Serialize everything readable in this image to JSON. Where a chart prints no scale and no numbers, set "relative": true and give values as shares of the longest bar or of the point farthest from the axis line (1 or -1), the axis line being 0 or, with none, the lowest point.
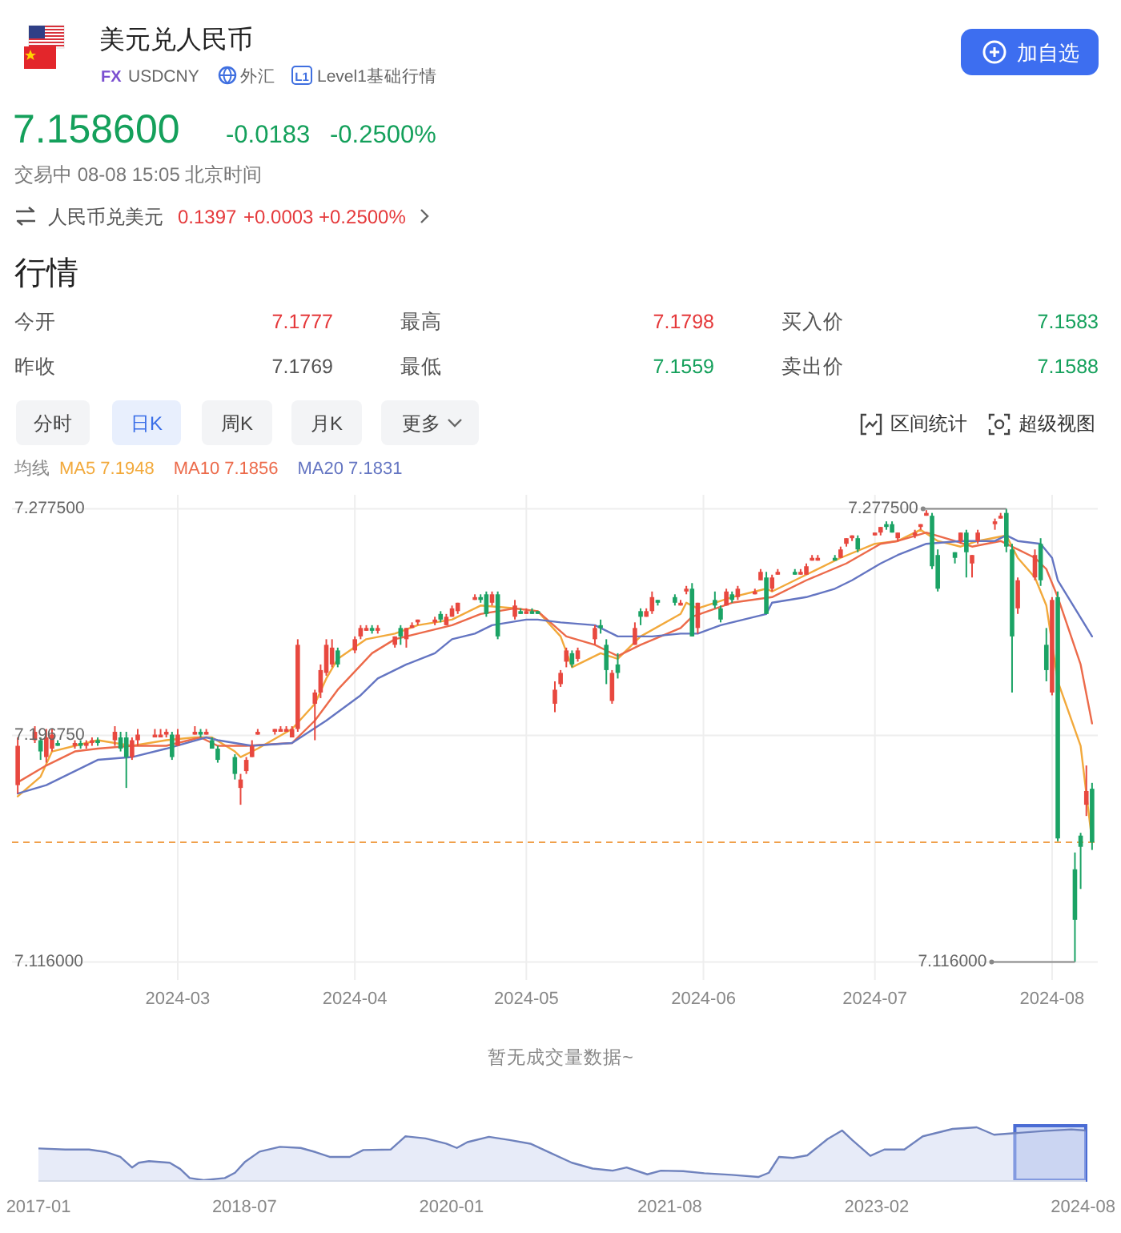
{
  "chart_data": [
    {
      "type": "other",
      "title": "美元兑人民币",
      "annotations": [
        "FX",
        "USDCNY",
        "外汇",
        "L1",
        "Level1基础行情",
        "加自选",
        "7.158600",
        "-0.0183",
        "-0.2500%",
        "交易中 08-08 15:05 北京时间",
        "人民币兑美元",
        "0.1397",
        "+0.0003",
        "+0.2500%",
        "行情",
        "今开",
        "7.1777",
        "最高",
        "7.1798",
        "买入价",
        "7.1583",
        "昨收",
        "7.1769",
        "最低",
        "7.1559",
        "卖出价",
        "7.1588",
        "分时",
        "日K",
        "周K",
        "月K",
        "更多",
        "区间统计",
        "超级视图"
      ]
    },
    {
      "type": "candlestick",
      "x": [
        "2024-02-02",
        "2024-02-05",
        "2024-02-06",
        "2024-02-07",
        "2024-02-08",
        "2024-02-09",
        "2024-02-12",
        "2024-02-13",
        "2024-02-14",
        "2024-02-15",
        "2024-02-16",
        "2024-02-19",
        "2024-02-20",
        "2024-02-21",
        "2024-02-22",
        "2024-02-23",
        "2024-02-26",
        "2024-02-27",
        "2024-02-28",
        "2024-02-29",
        "2024-03-01",
        "2024-03-04",
        "2024-03-05",
        "2024-03-06",
        "2024-03-07",
        "2024-03-08",
        "2024-03-11",
        "2024-03-12",
        "2024-03-13",
        "2024-03-14",
        "2024-03-15",
        "2024-03-18",
        "2024-03-19",
        "2024-03-20",
        "2024-03-21",
        "2024-03-22",
        "2024-03-25",
        "2024-03-26",
        "2024-03-27",
        "2024-03-28",
        "2024-03-29",
        "2024-04-01",
        "2024-04-02",
        "2024-04-03",
        "2024-04-04",
        "2024-04-05",
        "2024-04-08",
        "2024-04-09",
        "2024-04-10",
        "2024-04-11",
        "2024-04-12",
        "2024-04-15",
        "2024-04-16",
        "2024-04-17",
        "2024-04-18",
        "2024-04-19",
        "2024-04-22",
        "2024-04-23",
        "2024-04-24",
        "2024-04-25",
        "2024-04-26",
        "2024-04-29",
        "2024-04-30",
        "2024-05-01",
        "2024-05-02",
        "2024-05-03",
        "2024-05-06",
        "2024-05-07",
        "2024-05-08",
        "2024-05-09",
        "2024-05-10",
        "2024-05-13",
        "2024-05-14",
        "2024-05-15",
        "2024-05-16",
        "2024-05-17",
        "2024-05-20",
        "2024-05-21",
        "2024-05-22",
        "2024-05-23",
        "2024-05-24",
        "2024-05-27",
        "2024-05-28",
        "2024-05-29",
        "2024-05-30",
        "2024-05-31",
        "2024-06-03",
        "2024-06-04",
        "2024-06-05",
        "2024-06-06",
        "2024-06-07",
        "2024-06-10",
        "2024-06-11",
        "2024-06-12",
        "2024-06-13",
        "2024-06-14",
        "2024-06-17",
        "2024-06-18",
        "2024-06-19",
        "2024-06-20",
        "2024-06-21",
        "2024-06-24",
        "2024-06-25",
        "2024-06-26",
        "2024-06-27",
        "2024-06-28",
        "2024-07-01",
        "2024-07-02",
        "2024-07-03",
        "2024-07-04",
        "2024-07-05",
        "2024-07-08",
        "2024-07-09",
        "2024-07-10",
        "2024-07-11",
        "2024-07-12",
        "2024-07-15",
        "2024-07-16",
        "2024-07-17",
        "2024-07-18",
        "2024-07-19",
        "2024-07-22",
        "2024-07-23",
        "2024-07-24",
        "2024-07-25",
        "2024-07-26",
        "2024-07-29",
        "2024-07-30",
        "2024-07-31",
        "2024-08-01",
        "2024-08-02",
        "2024-08-05",
        "2024-08-06",
        "2024-08-07",
        "2024-08-08"
      ],
      "ohlc": [
        [
          7.179,
          7.196,
          7.176,
          7.193
        ],
        [
          7.195,
          7.2,
          7.194,
          7.198
        ],
        [
          7.195,
          7.196,
          7.188,
          7.191
        ],
        [
          7.189,
          7.199,
          7.187,
          7.196
        ],
        [
          7.192,
          7.199,
          7.191,
          7.197
        ],
        [
          7.194,
          7.195,
          7.193,
          7.193
        ],
        [
          7.193,
          7.195,
          7.192,
          7.194
        ],
        [
          7.194,
          7.195,
          7.192,
          7.193
        ],
        [
          7.193,
          7.195,
          7.192,
          7.194
        ],
        [
          7.194,
          7.196,
          7.193,
          7.195
        ],
        [
          7.195,
          7.196,
          7.193,
          7.194
        ],
        [
          7.195,
          7.2,
          7.193,
          7.198
        ],
        [
          7.196,
          7.198,
          7.191,
          7.192
        ],
        [
          7.196,
          7.198,
          7.178,
          7.189
        ],
        [
          7.189,
          7.196,
          7.188,
          7.195
        ],
        [
          7.195,
          7.199,
          7.193,
          7.197
        ],
        [
          7.196,
          7.199,
          7.196,
          7.197
        ],
        [
          7.196,
          7.199,
          7.196,
          7.197
        ],
        [
          7.197,
          7.199,
          7.196,
          7.198
        ],
        [
          7.197,
          7.198,
          7.188,
          7.189
        ],
        [
          7.193,
          7.199,
          7.193,
          7.197
        ],
        [
          7.197,
          7.2,
          7.197,
          7.198
        ],
        [
          7.198,
          7.199,
          7.196,
          7.197
        ],
        [
          7.197,
          7.199,
          7.197,
          7.198
        ],
        [
          7.195,
          7.196,
          7.192,
          7.192
        ],
        [
          7.192,
          7.193,
          7.187,
          7.188
        ],
        [
          7.189,
          7.19,
          7.181,
          7.183
        ],
        [
          7.178,
          7.183,
          7.172,
          7.181
        ],
        [
          7.184,
          7.189,
          7.183,
          7.188
        ],
        [
          7.189,
          7.195,
          7.189,
          7.193
        ],
        [
          7.197,
          7.199,
          7.197,
          7.198
        ],
        [
          7.198,
          7.199,
          7.197,
          7.199
        ],
        [
          7.198,
          7.2,
          7.198,
          7.199
        ],
        [
          7.198,
          7.2,
          7.198,
          7.199
        ],
        [
          7.196,
          7.2,
          7.196,
          7.199
        ],
        [
          7.199,
          7.231,
          7.198,
          7.229
        ],
        [
          7.208,
          7.213,
          7.195,
          7.212
        ],
        [
          7.212,
          7.222,
          7.21,
          7.22
        ],
        [
          7.219,
          7.231,
          7.218,
          7.229
        ],
        [
          7.222,
          7.231,
          7.221,
          7.228
        ],
        [
          7.227,
          7.228,
          7.221,
          7.222
        ],
        [
          7.227,
          7.232,
          7.226,
          7.231
        ],
        [
          7.232,
          7.236,
          7.231,
          7.235
        ],
        [
          7.234,
          7.236,
          7.234,
          7.235
        ],
        [
          7.235,
          7.236,
          7.233,
          7.234
        ],
        [
          7.234,
          7.236,
          7.233,
          7.235
        ],
        [
          7.229,
          7.232,
          7.228,
          7.232
        ],
        [
          7.235,
          7.236,
          7.229,
          7.232
        ],
        [
          7.231,
          7.235,
          7.228,
          7.235
        ],
        [
          7.235,
          7.237,
          7.235,
          7.236
        ],
        [
          7.237,
          7.238,
          7.236,
          7.238
        ],
        [
          7.237,
          7.239,
          7.236,
          7.238
        ],
        [
          7.24,
          7.241,
          7.237,
          7.238
        ],
        [
          7.236,
          7.24,
          7.236,
          7.239
        ],
        [
          7.239,
          7.243,
          7.239,
          7.242
        ],
        [
          7.241,
          7.244,
          7.24,
          7.244
        ],
        [
          7.245,
          7.247,
          7.245,
          7.246
        ],
        [
          7.246,
          7.247,
          7.244,
          7.245
        ],
        [
          7.247,
          7.248,
          7.239,
          7.24
        ],
        [
          7.244,
          7.248,
          7.243,
          7.247
        ],
        [
          7.247,
          7.248,
          7.231,
          7.232
        ],
        [
          7.239,
          7.245,
          7.238,
          7.243
        ],
        [
          7.241,
          7.242,
          7.24,
          7.24
        ],
        [
          7.24,
          7.242,
          7.24,
          7.241
        ],
        [
          7.241,
          7.242,
          7.24,
          7.24
        ],
        [
          7.241,
          7.241,
          7.24,
          7.24
        ],
        [
          7.208,
          7.216,
          7.205,
          7.213
        ],
        [
          7.215,
          7.22,
          7.214,
          7.219
        ],
        [
          7.223,
          7.228,
          7.221,
          7.227
        ],
        [
          7.226,
          7.227,
          7.221,
          7.222
        ],
        [
          7.224,
          7.228,
          7.223,
          7.227
        ],
        [
          7.231,
          7.236,
          7.229,
          7.235
        ],
        [
          7.236,
          7.238,
          7.233,
          7.235
        ],
        [
          7.229,
          7.231,
          7.215,
          7.22
        ],
        [
          7.209,
          7.22,
          7.208,
          7.219
        ],
        [
          7.222,
          7.226,
          7.217,
          7.219
        ],
        [
          7.229,
          7.237,
          7.229,
          7.235
        ],
        [
          7.241,
          7.242,
          7.236,
          7.239
        ],
        [
          7.239,
          7.242,
          7.239,
          7.241
        ],
        [
          7.241,
          7.248,
          7.24,
          7.246
        ],
        [
          7.245,
          7.245,
          7.243,
          7.244
        ],
        [
          7.246,
          7.247,
          7.243,
          7.244
        ],
        [
          7.243,
          7.245,
          7.243,
          7.244
        ],
        [
          7.248,
          7.25,
          7.247,
          7.249
        ],
        [
          7.249,
          7.251,
          7.232,
          7.232
        ],
        [
          7.235,
          7.244,
          7.233,
          7.244
        ],
        [
          7.245,
          7.248,
          7.242,
          7.243
        ],
        [
          7.242,
          7.243,
          7.237,
          7.238
        ],
        [
          7.243,
          7.249,
          7.243,
          7.248
        ],
        [
          7.247,
          7.248,
          7.244,
          7.245
        ],
        [
          7.246,
          7.25,
          7.245,
          7.249
        ],
        [
          7.247,
          7.249,
          7.247,
          7.248
        ],
        [
          7.252,
          7.256,
          7.252,
          7.255
        ],
        [
          7.253,
          7.255,
          7.24,
          7.24
        ],
        [
          7.249,
          7.254,
          7.248,
          7.253
        ],
        [
          7.254,
          7.256,
          7.254,
          7.255
        ],
        [
          7.255,
          7.256,
          7.254,
          7.254
        ],
        [
          7.254,
          7.256,
          7.254,
          7.255
        ],
        [
          7.254,
          7.258,
          7.254,
          7.257
        ],
        [
          7.259,
          7.261,
          7.259,
          7.26
        ],
        [
          7.259,
          7.261,
          7.259,
          7.26
        ],
        [
          7.26,
          7.261,
          7.259,
          7.259
        ],
        [
          7.26,
          7.264,
          7.26,
          7.263
        ],
        [
          7.265,
          7.267,
          7.264,
          7.267
        ],
        [
          7.267,
          7.268,
          7.266,
          7.268
        ],
        [
          7.267,
          7.268,
          7.262,
          7.263
        ],
        [
          7.268,
          7.269,
          7.268,
          7.269
        ],
        [
          7.269,
          7.271,
          7.268,
          7.271
        ],
        [
          7.272,
          7.273,
          7.27,
          7.271
        ],
        [
          7.272,
          7.273,
          7.269,
          7.269
        ],
        [
          7.267,
          7.269,
          7.266,
          7.269
        ],
        [
          7.268,
          7.27,
          7.267,
          7.269
        ],
        [
          7.271,
          7.272,
          7.27,
          7.272
        ],
        [
          7.275,
          7.277,
          7.275,
          7.276
        ],
        [
          7.275,
          7.276,
          7.256,
          7.257
        ],
        [
          7.261,
          7.263,
          7.248,
          7.249
        ],
        [
          7.262,
          7.262,
          7.258,
          7.26
        ],
        [
          7.266,
          7.269,
          7.265,
          7.269
        ],
        [
          7.269,
          7.27,
          7.253,
          7.262
        ],
        [
          7.258,
          7.261,
          7.253,
          7.261
        ],
        [
          7.266,
          7.27,
          7.265,
          7.269
        ],
        [
          7.272,
          7.274,
          7.27,
          7.273
        ],
        [
          7.274,
          7.276,
          7.274,
          7.275
        ],
        [
          7.276,
          7.2775,
          7.262,
          7.264
        ],
        [
          7.263,
          7.265,
          7.212,
          7.232
        ],
        [
          7.242,
          7.253,
          7.24,
          7.252
        ],
        [
          7.253,
          7.263,
          7.252,
          7.261
        ],
        [
          7.265,
          7.267,
          7.25,
          7.252
        ],
        [
          7.229,
          7.235,
          7.216,
          7.22
        ],
        [
          7.212,
          7.246,
          7.211,
          7.245
        ],
        [
          7.246,
          7.248,
          7.159,
          7.16
        ],
        [
          7.149,
          7.155,
          7.116,
          7.131
        ],
        [
          7.161,
          7.162,
          7.142,
          7.157
        ],
        [
          7.172,
          7.186,
          7.168,
          7.1769
        ],
        [
          7.1777,
          7.1798,
          7.1559,
          7.1586
        ]
      ],
      "series": [
        {
          "name": "MA5 7.1948",
          "type": "line",
          "color": "#f2a93b",
          "x": [
            "2024-02-02",
            "2024-02-06",
            "2024-02-08",
            "2024-02-12",
            "2024-02-16",
            "2024-02-22",
            "2024-02-28",
            "2024-03-04",
            "2024-03-07",
            "2024-03-11",
            "2024-03-12",
            "2024-03-15",
            "2024-03-21",
            "2024-03-25",
            "2024-03-27",
            "2024-03-29",
            "2024-04-03",
            "2024-04-08",
            "2024-04-12",
            "2024-04-18",
            "2024-04-23",
            "2024-04-29",
            "2024-05-03",
            "2024-05-07",
            "2024-05-09",
            "2024-05-14",
            "2024-05-17",
            "2024-05-21",
            "2024-05-28",
            "2024-05-29",
            "2024-05-31",
            "2024-06-06",
            "2024-06-12",
            "2024-06-13",
            "2024-06-19",
            "2024-06-25",
            "2024-07-01",
            "2024-07-05",
            "2024-07-09",
            "2024-07-12",
            "2024-07-16",
            "2024-07-19",
            "2024-07-24",
            "2024-07-26",
            "2024-07-29",
            "2024-07-31",
            "2024-08-02",
            "2024-08-06",
            "2024-08-08"
          ],
          "values": [
            7.175,
            7.182,
            7.191,
            7.193,
            7.195,
            7.193,
            7.195,
            7.196,
            7.196,
            7.191,
            7.189,
            7.192,
            7.199,
            7.208,
            7.217,
            7.224,
            7.231,
            7.233,
            7.236,
            7.238,
            7.243,
            7.242,
            7.241,
            7.232,
            7.221,
            7.226,
            7.224,
            7.232,
            7.24,
            7.244,
            7.242,
            7.246,
            7.249,
            7.248,
            7.254,
            7.26,
            7.265,
            7.266,
            7.27,
            7.266,
            7.264,
            7.266,
            7.268,
            7.26,
            7.253,
            7.243,
            7.216,
            7.193,
            7.159
          ]
        },
        {
          "name": "MA10 7.1856",
          "type": "line",
          "color": "#ec6a4a",
          "x": [
            "2024-02-02",
            "2024-02-07",
            "2024-02-12",
            "2024-02-16",
            "2024-02-22",
            "2024-02-28",
            "2024-03-05",
            "2024-03-08",
            "2024-03-13",
            "2024-03-21",
            "2024-03-25",
            "2024-03-29",
            "2024-04-04",
            "2024-04-08",
            "2024-04-12",
            "2024-04-18",
            "2024-04-23",
            "2024-04-29",
            "2024-05-03",
            "2024-05-08",
            "2024-05-13",
            "2024-05-17",
            "2024-05-21",
            "2024-05-28",
            "2024-05-30",
            "2024-06-06",
            "2024-06-13",
            "2024-06-19",
            "2024-06-26",
            "2024-07-02",
            "2024-07-05",
            "2024-07-10",
            "2024-07-15",
            "2024-07-18",
            "2024-07-23",
            "2024-07-25",
            "2024-07-29",
            "2024-07-31",
            "2024-08-02",
            "2024-08-06",
            "2024-08-08"
          ],
          "values": [
            7.18,
            7.186,
            7.191,
            7.192,
            7.193,
            7.193,
            7.196,
            7.193,
            7.193,
            7.194,
            7.202,
            7.213,
            7.226,
            7.231,
            7.233,
            7.236,
            7.24,
            7.242,
            7.241,
            7.232,
            7.229,
            7.225,
            7.229,
            7.235,
            7.239,
            7.244,
            7.246,
            7.252,
            7.258,
            7.265,
            7.266,
            7.269,
            7.266,
            7.264,
            7.266,
            7.264,
            7.26,
            7.256,
            7.246,
            7.222,
            7.201
          ]
        },
        {
          "name": "MA20 7.1831",
          "type": "line",
          "color": "#6475c2",
          "x": [
            "2024-02-02",
            "2024-02-07",
            "2024-02-12",
            "2024-02-16",
            "2024-02-22",
            "2024-02-28",
            "2024-03-06",
            "2024-03-08",
            "2024-03-14",
            "2024-03-21",
            "2024-03-27",
            "2024-04-02",
            "2024-04-05",
            "2024-04-10",
            "2024-04-15",
            "2024-04-18",
            "2024-04-22",
            "2024-04-25",
            "2024-05-01",
            "2024-05-03",
            "2024-05-07",
            "2024-05-13",
            "2024-05-17",
            "2024-05-21",
            "2024-05-23",
            "2024-05-28",
            "2024-05-31",
            "2024-06-04",
            "2024-06-12",
            "2024-06-13",
            "2024-06-19",
            "2024-06-24",
            "2024-06-27",
            "2024-07-02",
            "2024-07-05",
            "2024-07-10",
            "2024-07-16",
            "2024-07-22",
            "2024-07-24",
            "2024-07-26",
            "2024-07-30",
            "2024-08-01",
            "2024-08-02",
            "2024-08-08"
          ],
          "values": [
            7.176,
            7.179,
            7.184,
            7.188,
            7.189,
            7.192,
            7.196,
            7.195,
            7.193,
            7.194,
            7.202,
            7.211,
            7.217,
            7.222,
            7.226,
            7.231,
            7.233,
            7.236,
            7.238,
            7.238,
            7.237,
            7.236,
            7.232,
            7.232,
            7.232,
            7.233,
            7.233,
            7.236,
            7.24,
            7.244,
            7.246,
            7.249,
            7.252,
            7.258,
            7.261,
            7.265,
            7.266,
            7.266,
            7.268,
            7.266,
            7.265,
            7.26,
            7.252,
            7.232
          ]
        }
      ],
      "legend_title": "均线",
      "legend": "top left",
      "ylim": [
        7.116,
        7.2775
      ],
      "yticks": [
        {
          "value": 7.2775,
          "label": "7.277500"
        },
        {
          "value": 7.19675,
          "label": "7.196750"
        },
        {
          "value": 7.116,
          "label": "7.116000"
        }
      ],
      "xlim": [
        "2024-02-01",
        "2024-08-09"
      ],
      "xticks": [
        "2024-03",
        "2024-04",
        "2024-05",
        "2024-06",
        "2024-07",
        "2024-08"
      ],
      "grid": true,
      "ref_lines": [
        {
          "axis": "y",
          "value": 7.1586,
          "color": "#f0a04b",
          "line_style": "dashed"
        }
      ],
      "annotations": [
        {
          "text": "7.277500",
          "x": "2024-07-24",
          "y": 7.2775
        },
        {
          "text": "7.116000",
          "x": "2024-08-05",
          "y": 7.116
        },
        "暂无成交量数据~"
      ]
    },
    {
      "type": "area",
      "relative": true,
      "color": "#6f82bd",
      "x": [
        "2017-01-01",
        "2017-03-13",
        "2017-05-15",
        "2017-07-01",
        "2017-08-06",
        "2017-09-06",
        "2017-09-24",
        "2017-10-21",
        "2017-12-15",
        "2018-01-12",
        "2018-02-06",
        "2018-03-15",
        "2018-05-10",
        "2018-06-06",
        "2018-07-03",
        "2018-08-10",
        "2018-10-03",
        "2018-11-27",
        "2019-01-06",
        "2019-02-12",
        "2019-04-06",
        "2019-05-12",
        "2019-07-24",
        "2019-09-01",
        "2019-10-24",
        "2019-12-18",
        "2020-01-15",
        "2020-02-12",
        "2020-04-09",
        "2020-06-03",
        "2020-07-28",
        "2020-09-21",
        "2020-11-15",
        "2021-01-09",
        "2021-03-03",
        "2021-04-09",
        "2021-06-03",
        "2021-07-09",
        "2021-09-06",
        "2021-11-01",
        "2022-01-12",
        "2022-03-24",
        "2022-04-21",
        "2022-05-18",
        "2022-06-24",
        "2022-08-01",
        "2022-09-24",
        "2022-11-01",
        "2022-11-28",
        "2023-01-15",
        "2023-02-21",
        "2023-04-15",
        "2023-06-03",
        "2023-08-21",
        "2023-10-24",
        "2023-12-09",
        "2024-02-03",
        "2024-04-18",
        "2024-07-01",
        "2024-08-08"
      ],
      "values": [
        0.6,
        0.58,
        0.58,
        0.53,
        0.44,
        0.24,
        0.33,
        0.36,
        0.33,
        0.21,
        0.04,
        0,
        0.04,
        0.14,
        0.35,
        0.54,
        0.63,
        0.61,
        0.53,
        0.44,
        0.44,
        0.57,
        0.58,
        0.83,
        0.79,
        0.69,
        0.61,
        0.72,
        0.82,
        0.76,
        0.69,
        0.51,
        0.33,
        0.22,
        0.18,
        0.24,
        0.11,
        0.18,
        0.17,
        0.13,
        0.1,
        0.06,
        0.14,
        0.44,
        0.42,
        0.47,
        0.78,
        0.94,
        0.76,
        0.46,
        0.58,
        0.58,
        0.83,
        0.97,
        1,
        0.86,
        0.89,
        0.93,
        0.96,
        0.94
      ],
      "xlim": [
        "2017-01-01",
        "2024-08-08"
      ],
      "xticks": [
        "2017-01",
        "2018-07",
        "2020-01",
        "2021-08",
        "2023-02",
        "2024-08"
      ],
      "bands": [
        {
          "axis": "x",
          "from": "2024-02-02",
          "to": "2024-08-08",
          "color": "#cdd8f5"
        }
      ]
    }
  ]
}
